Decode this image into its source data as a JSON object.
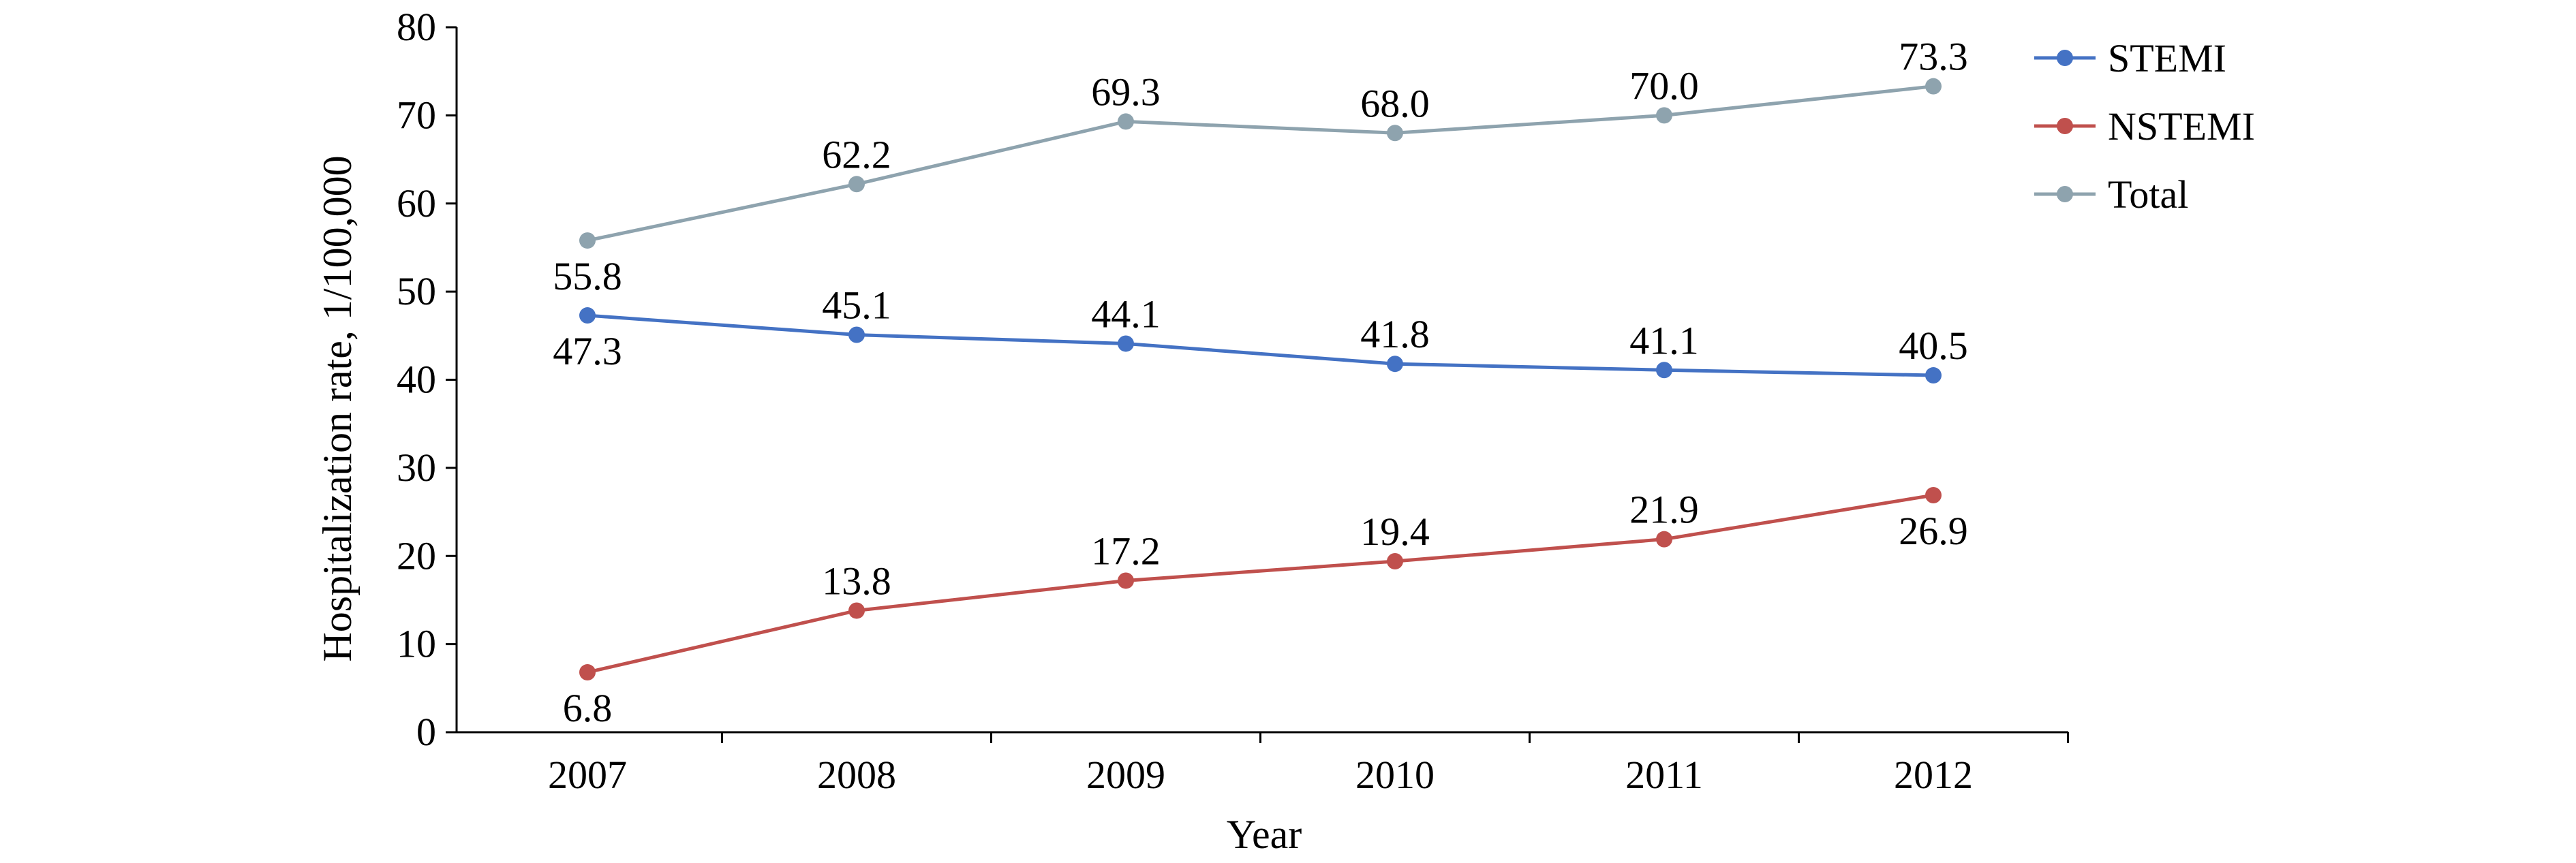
{
  "chart_data": {
    "type": "line",
    "title": "",
    "xlabel": "Year",
    "ylabel": "Hospitalization rate, 1/100,000",
    "categories": [
      "2007",
      "2008",
      "2009",
      "2010",
      "2011",
      "2012"
    ],
    "ylim": [
      0,
      80
    ],
    "yticks": [
      "0",
      "10",
      "20",
      "30",
      "40",
      "50",
      "60",
      "70",
      "80"
    ],
    "grid": false,
    "legend_position": "right",
    "series": [
      {
        "name": "STEMI",
        "color": "#4472C4",
        "values": [
          47.3,
          45.1,
          44.1,
          41.8,
          41.1,
          40.5
        ],
        "labels": [
          "47.3",
          "45.1",
          "44.1",
          "41.8",
          "41.1",
          "40.5"
        ],
        "label_placement": [
          "below",
          "above",
          "above",
          "above",
          "above",
          "above"
        ]
      },
      {
        "name": "NSTEMI",
        "color": "#C0504D",
        "values": [
          6.8,
          13.8,
          17.2,
          19.4,
          21.9,
          26.9
        ],
        "labels": [
          "6.8",
          "13.8",
          "17.2",
          "19.4",
          "21.9",
          "26.9"
        ],
        "label_placement": [
          "below",
          "above",
          "above",
          "above",
          "above",
          "below"
        ]
      },
      {
        "name": "Total",
        "color": "#8EA3AE",
        "values": [
          55.8,
          62.2,
          69.3,
          68.0,
          70.0,
          73.3
        ],
        "labels": [
          "55.8",
          "62.2",
          "69.3",
          "68.0",
          "70.0",
          "73.3"
        ],
        "label_placement": [
          "below",
          "above",
          "above",
          "above",
          "above",
          "above"
        ]
      }
    ]
  }
}
